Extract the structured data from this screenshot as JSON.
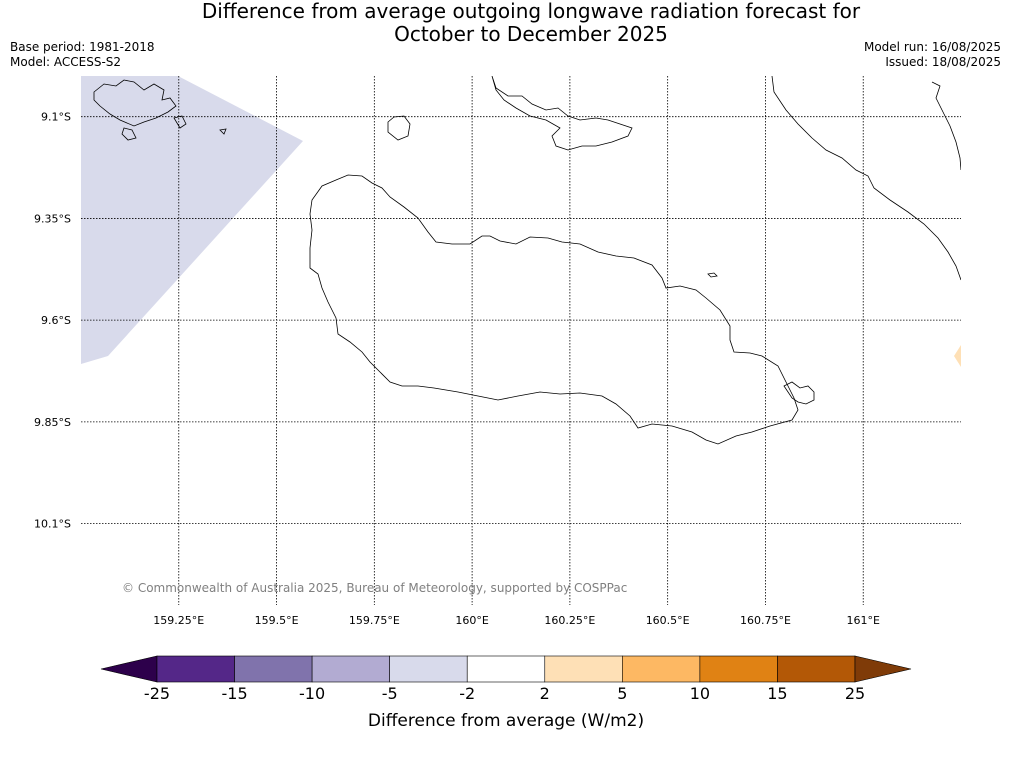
{
  "title_line1": "Difference from average outgoing longwave radiation forecast for",
  "title_line2": "October to December 2025",
  "base_period": "Base period: 1981-2018",
  "model": "Model: ACCESS-S2",
  "model_run": "Model run: 16/08/2025",
  "issued": "Issued: 18/08/2025",
  "copyright": "© Commonwealth of Australia 2025, Bureau of Meteorology, supported by COSPPac",
  "map": {
    "lon_range": [
      159.0,
      161.25
    ],
    "lat_range": [
      -10.3,
      -9.0
    ],
    "latitude_labels": [
      {
        "value": -9.1,
        "label": "9.1°S"
      },
      {
        "value": -9.35,
        "label": "9.35°S"
      },
      {
        "value": -9.6,
        "label": "9.6°S"
      },
      {
        "value": -9.85,
        "label": "9.85°S"
      },
      {
        "value": -10.1,
        "label": "10.1°S"
      }
    ],
    "longitude_labels": [
      {
        "value": 159.25,
        "label": "159.25°E"
      },
      {
        "value": 159.5,
        "label": "159.5°E"
      },
      {
        "value": 159.75,
        "label": "159.75°E"
      },
      {
        "value": 160.0,
        "label": "160°E"
      },
      {
        "value": 160.25,
        "label": "160.25°E"
      },
      {
        "value": 160.5,
        "label": "160.5°E"
      },
      {
        "value": 160.75,
        "label": "160.75°E"
      },
      {
        "value": 161.0,
        "label": "161°E"
      }
    ],
    "anomaly_areas": [
      {
        "category": "-5 to -2",
        "color": "#d9d9ea"
      },
      {
        "category": "2 to 5",
        "color": "#fee0b6"
      }
    ]
  },
  "colorbar": {
    "title": "Difference from average (W/m2)",
    "tick_labels": [
      "-25",
      "-15",
      "-10",
      "-5",
      "-2",
      "2",
      "5",
      "10",
      "15",
      "25"
    ],
    "colors": [
      "#2d004b",
      "#542788",
      "#8073ac",
      "#b2abd2",
      "#d8daeb",
      "#ffffff",
      "#fee0b6",
      "#fdb863",
      "#e08214",
      "#b35806",
      "#7f3b08"
    ]
  }
}
